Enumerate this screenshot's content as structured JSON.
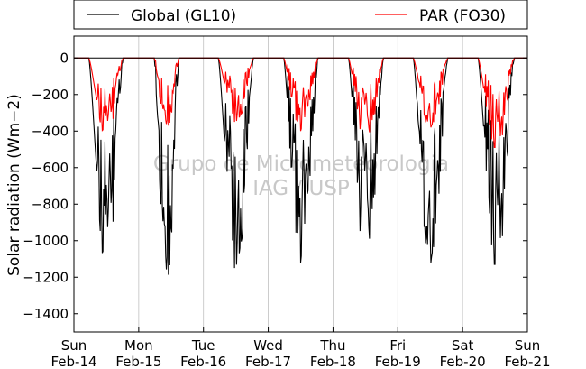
{
  "chart_data": {
    "type": "line",
    "ylabel": "Solar radiation (Wm−2)",
    "ylim": [
      -1500,
      120
    ],
    "yticks": [
      0,
      -200,
      -400,
      -600,
      -800,
      -1000,
      -1200,
      -1400
    ],
    "xlim_days": [
      0,
      7
    ],
    "xticks": [
      {
        "day": "Sun",
        "date": "Feb-14"
      },
      {
        "day": "Mon",
        "date": "Feb-15"
      },
      {
        "day": "Tue",
        "date": "Feb-16"
      },
      {
        "day": "Wed",
        "date": "Feb-17"
      },
      {
        "day": "Thu",
        "date": "Feb-18"
      },
      {
        "day": "Fri",
        "date": "Feb-19"
      },
      {
        "day": "Sat",
        "date": "Feb-20"
      },
      {
        "day": "Sun",
        "date": "Feb-21"
      }
    ],
    "grid": "vertical",
    "legend": {
      "placement": "top, above plot"
    },
    "series": [
      {
        "name": "Global (GL10)",
        "color": "#000000",
        "daily_min_approx": [
          -1130,
          -1250,
          -1150,
          -1120,
          -1120,
          -1120,
          -1130
        ]
      },
      {
        "name": "PAR (FO30)",
        "color": "#ff0000",
        "daily_min_approx": [
          -420,
          -390,
          -350,
          -400,
          -460,
          -380,
          -490
        ]
      }
    ],
    "watermark": [
      "Grupo de Micrometeorologia",
      "IAG / USP"
    ]
  }
}
